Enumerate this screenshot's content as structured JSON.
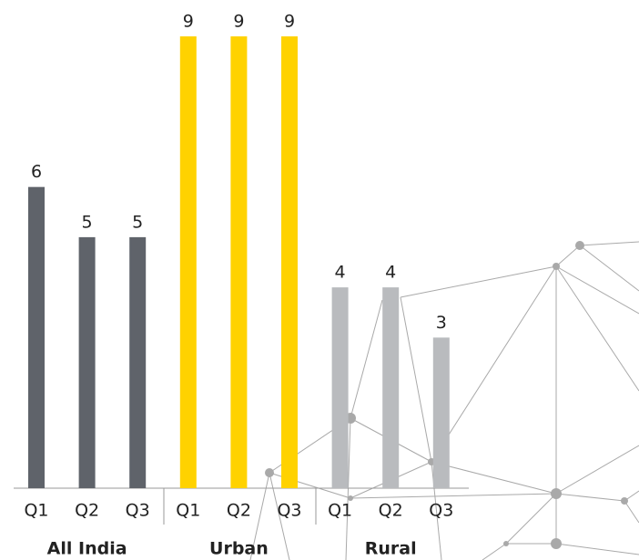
{
  "chart_data": {
    "type": "bar",
    "groups": [
      {
        "name": "All India",
        "color": "#5f636a",
        "categories": [
          "Q1",
          "Q2",
          "Q3"
        ],
        "values": [
          6,
          5,
          5
        ]
      },
      {
        "name": "Urban",
        "color": "#ffd200",
        "categories": [
          "Q1",
          "Q2",
          "Q3"
        ],
        "values": [
          9,
          9,
          9
        ]
      },
      {
        "name": "Rural",
        "color": "#b9bbbe",
        "categories": [
          "Q1",
          "Q2",
          "Q3"
        ],
        "values": [
          4,
          4,
          3
        ]
      }
    ]
  }
}
